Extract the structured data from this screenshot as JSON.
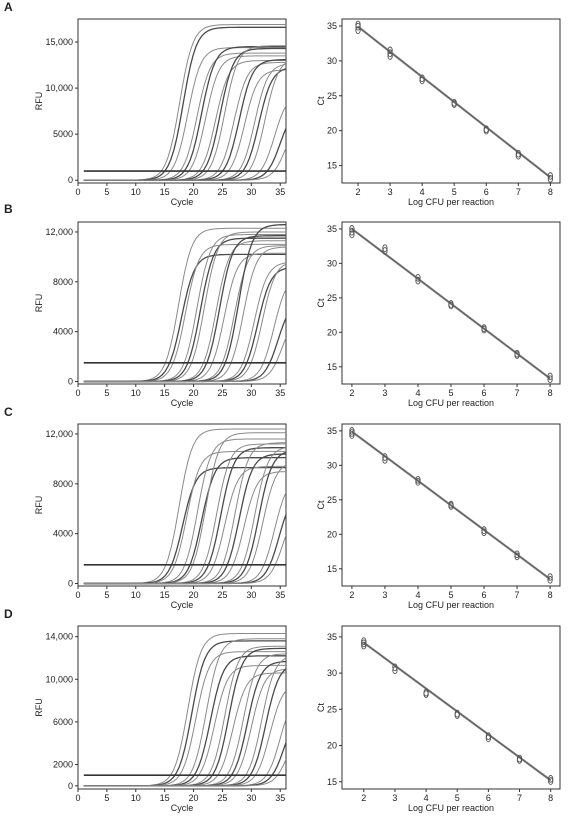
{
  "panel_labels": [
    "A",
    "B",
    "C",
    "D"
  ],
  "chart_data": [
    {
      "panel": "A",
      "type": "line",
      "xlabel": "Cycle",
      "ylabel": "RFU",
      "xlim": [
        0,
        36
      ],
      "ylim": [
        -300,
        17500
      ],
      "x_ticks": [
        0,
        5,
        10,
        15,
        20,
        25,
        30,
        35
      ],
      "y_ticks": [
        0,
        5000,
        10000,
        15000
      ],
      "y_tick_labels": [
        "0",
        "5000",
        "10,000",
        "15,000"
      ],
      "threshold": 1000,
      "curve_note": "amplification curves; midpoint cycle (Ct) and plateau RFU",
      "curves": [
        {
          "mid": 17.6,
          "plateau": 16900
        },
        {
          "mid": 18.2,
          "plateau": 16600
        },
        {
          "mid": 19.0,
          "plateau": 14400
        },
        {
          "mid": 20.6,
          "plateau": 13800
        },
        {
          "mid": 21.4,
          "plateau": 14500
        },
        {
          "mid": 22.1,
          "plateau": 13500
        },
        {
          "mid": 23.8,
          "plateau": 13000
        },
        {
          "mid": 24.6,
          "plateau": 14300
        },
        {
          "mid": 25.4,
          "plateau": 14600
        },
        {
          "mid": 27.0,
          "plateau": 12800
        },
        {
          "mid": 27.9,
          "plateau": 13100
        },
        {
          "mid": 28.8,
          "plateau": 12000
        },
        {
          "mid": 30.6,
          "plateau": 12700
        },
        {
          "mid": 31.3,
          "plateau": 12300
        },
        {
          "mid": 32.4,
          "plateau": 13300
        },
        {
          "mid": 34.0,
          "plateau": 9500
        },
        {
          "mid": 35.0,
          "plateau": 8000
        },
        {
          "mid": 36.0,
          "plateau": 7000
        }
      ]
    },
    {
      "panel": "A",
      "type": "scatter",
      "xlabel": "Log CFU per reaction",
      "ylabel": "Ct",
      "xlim": [
        1.5,
        8.3
      ],
      "ylim": [
        12.5,
        36
      ],
      "x_ticks": [
        2,
        3,
        4,
        5,
        6,
        7,
        8
      ],
      "y_ticks": [
        15,
        20,
        25,
        30,
        35
      ],
      "points": [
        {
          "x": 2,
          "y": [
            34.4,
            34.9,
            35.2
          ]
        },
        {
          "x": 3,
          "y": [
            30.7,
            31.1,
            31.5
          ]
        },
        {
          "x": 4,
          "y": [
            27.2,
            27.5
          ]
        },
        {
          "x": 5,
          "y": [
            23.8,
            24.0
          ]
        },
        {
          "x": 6,
          "y": [
            20.0,
            20.2
          ]
        },
        {
          "x": 7,
          "y": [
            16.4,
            16.7
          ]
        },
        {
          "x": 8,
          "y": [
            13.1,
            13.5
          ]
        }
      ],
      "fit": [
        [
          2,
          34.9
        ],
        [
          8,
          13.3
        ]
      ]
    },
    {
      "panel": "B",
      "type": "line",
      "xlabel": "Cycle",
      "ylabel": "RFU",
      "xlim": [
        0,
        36
      ],
      "ylim": [
        -200,
        12800
      ],
      "x_ticks": [
        0,
        5,
        10,
        15,
        20,
        25,
        30,
        35
      ],
      "y_ticks": [
        0,
        4000,
        8000,
        12000
      ],
      "y_tick_labels": [
        "0",
        "4000",
        "8000",
        "12,000"
      ],
      "threshold": 1500,
      "curve_note": "amplification curves; midpoint cycle (Ct) and plateau RFU",
      "curves": [
        {
          "mid": 17.4,
          "plateau": 12300
        },
        {
          "mid": 17.9,
          "plateau": 10200
        },
        {
          "mid": 18.6,
          "plateau": 11000
        },
        {
          "mid": 20.6,
          "plateau": 11800
        },
        {
          "mid": 21.2,
          "plateau": 11500
        },
        {
          "mid": 21.9,
          "plateau": 12000
        },
        {
          "mid": 23.9,
          "plateau": 11300
        },
        {
          "mid": 24.5,
          "plateau": 11700
        },
        {
          "mid": 25.3,
          "plateau": 10300
        },
        {
          "mid": 27.1,
          "plateau": 10900
        },
        {
          "mid": 27.8,
          "plateau": 12600
        },
        {
          "mid": 28.6,
          "plateau": 10800
        },
        {
          "mid": 30.5,
          "plateau": 9600
        },
        {
          "mid": 31.1,
          "plateau": 9200
        },
        {
          "mid": 31.9,
          "plateau": 9700
        },
        {
          "mid": 33.9,
          "plateau": 8600
        },
        {
          "mid": 34.6,
          "plateau": 6600
        },
        {
          "mid": 35.4,
          "plateau": 5600
        }
      ]
    },
    {
      "panel": "B",
      "type": "scatter",
      "xlabel": "Log CFU per reaction",
      "ylabel": "Ct",
      "xlim": [
        1.7,
        8.3
      ],
      "ylim": [
        12.5,
        36
      ],
      "x_ticks": [
        2,
        3,
        4,
        5,
        6,
        7,
        8
      ],
      "y_ticks": [
        15,
        20,
        25,
        30,
        35
      ],
      "points": [
        {
          "x": 2,
          "y": [
            34.2,
            34.6,
            35.0
          ]
        },
        {
          "x": 3,
          "y": [
            31.8,
            32.2
          ]
        },
        {
          "x": 4,
          "y": [
            27.5,
            27.9
          ]
        },
        {
          "x": 5,
          "y": [
            23.9,
            24.1
          ]
        },
        {
          "x": 6,
          "y": [
            20.4,
            20.6
          ]
        },
        {
          "x": 7,
          "y": [
            16.7,
            16.9
          ]
        },
        {
          "x": 8,
          "y": [
            13.2,
            13.6
          ]
        }
      ],
      "fit": [
        [
          2,
          35.0
        ],
        [
          8,
          13.3
        ]
      ]
    },
    {
      "panel": "C",
      "type": "line",
      "xlabel": "Cycle",
      "ylabel": "RFU",
      "xlim": [
        0,
        36
      ],
      "ylim": [
        -200,
        12800
      ],
      "x_ticks": [
        0,
        5,
        10,
        15,
        20,
        25,
        30,
        35
      ],
      "y_ticks": [
        0,
        4000,
        8000,
        12000
      ],
      "y_tick_labels": [
        "0",
        "4000",
        "8000",
        "12,000"
      ],
      "threshold": 1500,
      "curve_note": "amplification curves; midpoint cycle (Ct) and plateau RFU",
      "curves": [
        {
          "mid": 17.5,
          "plateau": 12400
        },
        {
          "mid": 18.1,
          "plateau": 9300
        },
        {
          "mid": 18.8,
          "plateau": 10600
        },
        {
          "mid": 20.7,
          "plateau": 11600
        },
        {
          "mid": 21.4,
          "plateau": 10100
        },
        {
          "mid": 22.1,
          "plateau": 12100
        },
        {
          "mid": 24.0,
          "plateau": 11200
        },
        {
          "mid": 24.7,
          "plateau": 10900
        },
        {
          "mid": 25.4,
          "plateau": 9400
        },
        {
          "mid": 27.2,
          "plateau": 11300
        },
        {
          "mid": 27.9,
          "plateau": 10400
        },
        {
          "mid": 28.7,
          "plateau": 9000
        },
        {
          "mid": 30.6,
          "plateau": 11000
        },
        {
          "mid": 31.3,
          "plateau": 10700
        },
        {
          "mid": 32.0,
          "plateau": 9800
        },
        {
          "mid": 34.0,
          "plateau": 8600
        },
        {
          "mid": 34.8,
          "plateau": 7500
        },
        {
          "mid": 35.5,
          "plateau": 6400
        }
      ]
    },
    {
      "panel": "C",
      "type": "scatter",
      "xlabel": "Log CFU per reaction",
      "ylabel": "Ct",
      "xlim": [
        1.7,
        8.3
      ],
      "ylim": [
        12.5,
        36
      ],
      "x_ticks": [
        2,
        3,
        4,
        5,
        6,
        7,
        8
      ],
      "y_ticks": [
        15,
        20,
        25,
        30,
        35
      ],
      "points": [
        {
          "x": 2,
          "y": [
            34.4,
            34.7,
            35.0
          ]
        },
        {
          "x": 3,
          "y": [
            30.8,
            31.2
          ]
        },
        {
          "x": 4,
          "y": [
            27.6,
            27.9
          ]
        },
        {
          "x": 5,
          "y": [
            24.1,
            24.3
          ]
        },
        {
          "x": 6,
          "y": [
            20.3,
            20.6
          ]
        },
        {
          "x": 7,
          "y": [
            16.8,
            17.1
          ]
        },
        {
          "x": 8,
          "y": [
            13.4,
            13.8
          ]
        }
      ],
      "fit": [
        [
          2,
          34.9
        ],
        [
          8,
          13.5
        ]
      ]
    },
    {
      "panel": "D",
      "type": "line",
      "xlabel": "Cycle",
      "ylabel": "RFU",
      "xlim": [
        0,
        36
      ],
      "ylim": [
        -300,
        15000
      ],
      "x_ticks": [
        0,
        5,
        10,
        15,
        20,
        25,
        30,
        35
      ],
      "y_ticks": [
        0,
        2000,
        6000,
        10000,
        14000
      ],
      "y_tick_labels": [
        "0",
        "2000",
        "6000",
        "10,000",
        "14,000"
      ],
      "threshold": 1000,
      "curve_note": "amplification curves; midpoint cycle (Ct) and plateau RFU",
      "curves": [
        {
          "mid": 19.0,
          "plateau": 14300
        },
        {
          "mid": 19.7,
          "plateau": 13600
        },
        {
          "mid": 20.4,
          "plateau": 12600
        },
        {
          "mid": 22.2,
          "plateau": 13800
        },
        {
          "mid": 22.9,
          "plateau": 12200
        },
        {
          "mid": 23.6,
          "plateau": 11300
        },
        {
          "mid": 25.4,
          "plateau": 13100
        },
        {
          "mid": 26.1,
          "plateau": 12900
        },
        {
          "mid": 26.8,
          "plateau": 10600
        },
        {
          "mid": 28.6,
          "plateau": 12400
        },
        {
          "mid": 29.3,
          "plateau": 11700
        },
        {
          "mid": 30.0,
          "plateau": 11000
        },
        {
          "mid": 31.8,
          "plateau": 12300
        },
        {
          "mid": 32.5,
          "plateau": 11500
        },
        {
          "mid": 33.2,
          "plateau": 9700
        },
        {
          "mid": 35.0,
          "plateau": 8900
        },
        {
          "mid": 35.7,
          "plateau": 7200
        },
        {
          "mid": 36.4,
          "plateau": 6000
        }
      ]
    },
    {
      "panel": "D",
      "type": "scatter",
      "xlabel": "Log CFU per reaction",
      "ylabel": "Ct",
      "xlim": [
        1.3,
        8.3
      ],
      "ylim": [
        14,
        36.5
      ],
      "x_ticks": [
        2,
        3,
        4,
        5,
        6,
        7,
        8
      ],
      "y_ticks": [
        15,
        20,
        25,
        30,
        35
      ],
      "points": [
        {
          "x": 2,
          "y": [
            33.8,
            34.1,
            34.4
          ]
        },
        {
          "x": 3,
          "y": [
            30.4,
            30.8
          ]
        },
        {
          "x": 4,
          "y": [
            27.1,
            27.3
          ]
        },
        {
          "x": 5,
          "y": [
            24.2,
            24.4
          ]
        },
        {
          "x": 6,
          "y": [
            21.0,
            21.3
          ]
        },
        {
          "x": 7,
          "y": [
            18.0,
            18.2
          ]
        },
        {
          "x": 8,
          "y": [
            15.1,
            15.4
          ]
        }
      ],
      "fit": [
        [
          2,
          34.2
        ],
        [
          8,
          15.2
        ]
      ]
    }
  ]
}
